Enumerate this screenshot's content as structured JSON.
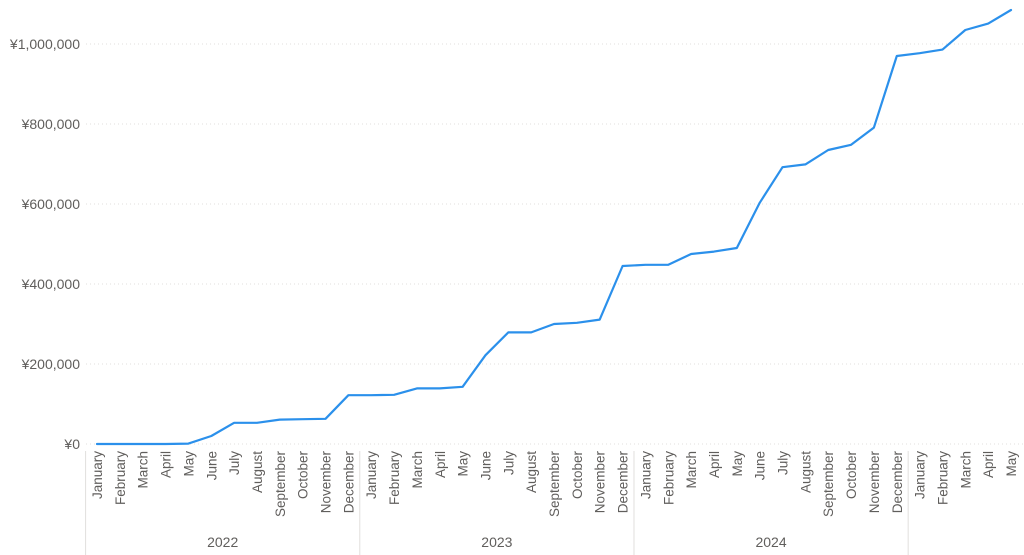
{
  "chart_data": {
    "type": "line",
    "title": "",
    "xlabel": "",
    "ylabel": "",
    "ylim": [
      0,
      1080000
    ],
    "yticks": [
      0,
      200000,
      400000,
      600000,
      800000,
      1000000
    ],
    "ytick_labels": [
      "¥0",
      "¥200,000",
      "¥400,000",
      "¥600,000",
      "¥800,000",
      "¥1,000,000"
    ],
    "grid": true,
    "line_color": "#2b90eb",
    "years": [
      {
        "label": "2022",
        "months": 12
      },
      {
        "label": "2023",
        "months": 12
      },
      {
        "label": "2024",
        "months": 12
      },
      {
        "label": "",
        "months": 5
      }
    ],
    "x": [
      "January",
      "February",
      "March",
      "April",
      "May",
      "June",
      "July",
      "August",
      "September",
      "October",
      "November",
      "December",
      "January",
      "February",
      "March",
      "April",
      "May",
      "June",
      "July",
      "August",
      "September",
      "October",
      "November",
      "December",
      "January",
      "February",
      "March",
      "April",
      "May",
      "June",
      "July",
      "August",
      "September",
      "October",
      "November",
      "December",
      "January",
      "February",
      "March",
      "April",
      "May"
    ],
    "series": [
      {
        "values": [
          0,
          0,
          0,
          0,
          1000,
          20000,
          53000,
          53000,
          61000,
          62000,
          63000,
          122000,
          122000,
          123000,
          139000,
          139000,
          143000,
          222000,
          279000,
          279000,
          300000,
          303000,
          311000,
          445000,
          448000,
          448000,
          475000,
          481000,
          490000,
          603000,
          692000,
          699000,
          735000,
          748000,
          791000,
          970000,
          977000,
          986000,
          1035000,
          1051000,
          1085000
        ]
      }
    ]
  }
}
